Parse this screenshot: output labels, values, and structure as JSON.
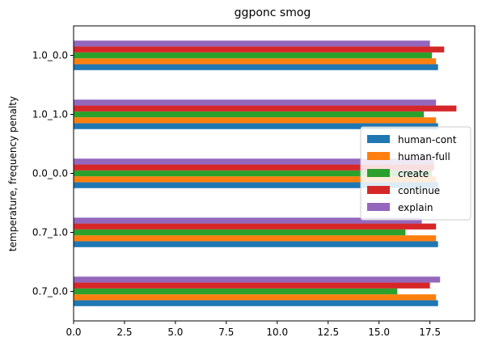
{
  "chart_data": {
    "type": "bar",
    "orientation": "horizontal",
    "title": "ggponc smog",
    "xlabel": "",
    "ylabel": "temperature, frequency penalty",
    "xlim": [
      0,
      19.7
    ],
    "xticks": [
      0.0,
      2.5,
      5.0,
      7.5,
      10.0,
      12.5,
      15.0,
      17.5
    ],
    "xtick_labels": [
      "0.0",
      "2.5",
      "5.0",
      "7.5",
      "10.0",
      "12.5",
      "15.0",
      "17.5"
    ],
    "categories": [
      "0.7_0.0",
      "0.7_1.0",
      "0.0_0.0",
      "1.0_1.0",
      "1.0_0.0"
    ],
    "grid": false,
    "legend_position": "center-right",
    "series": [
      {
        "name": "human-cont",
        "color": "#1f77b4",
        "values": [
          17.9,
          17.9,
          17.9,
          17.9,
          17.9
        ]
      },
      {
        "name": "human-full",
        "color": "#ff7f0e",
        "values": [
          17.8,
          17.8,
          17.8,
          17.8,
          17.8
        ]
      },
      {
        "name": "create",
        "color": "#2ca02c",
        "values": [
          15.9,
          16.3,
          17.6,
          17.2,
          17.6
        ]
      },
      {
        "name": "continue",
        "color": "#d62728",
        "values": [
          17.5,
          17.8,
          17.7,
          18.8,
          18.2
        ]
      },
      {
        "name": "explain",
        "color": "#9467bd",
        "values": [
          18.0,
          17.1,
          17.7,
          17.8,
          17.5
        ]
      }
    ]
  }
}
